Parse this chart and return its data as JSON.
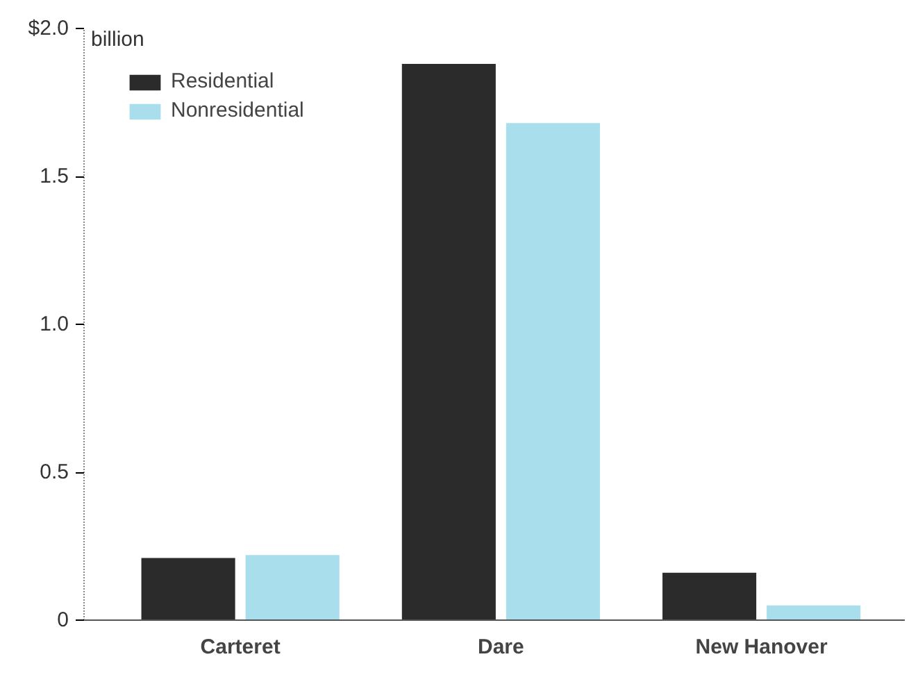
{
  "chart_data": {
    "type": "bar",
    "categories": [
      "Carteret",
      "Dare",
      "New Hanover"
    ],
    "series": [
      {
        "name": "Residential",
        "color": "#2b2b2b",
        "values": [
          0.21,
          1.88,
          0.16
        ]
      },
      {
        "name": "Nonresidential",
        "color": "#a9dfec",
        "values": [
          0.22,
          1.68,
          0.05
        ]
      }
    ],
    "ylim": [
      0,
      2.0
    ],
    "yticks": [
      0,
      0.5,
      {
        "value": 1.0,
        "label": "1.0"
      },
      1.5,
      {
        "value": 2.0,
        "label": "$2.0"
      }
    ],
    "annotations": [
      "billion"
    ],
    "legend": "top left",
    "grid": false
  }
}
